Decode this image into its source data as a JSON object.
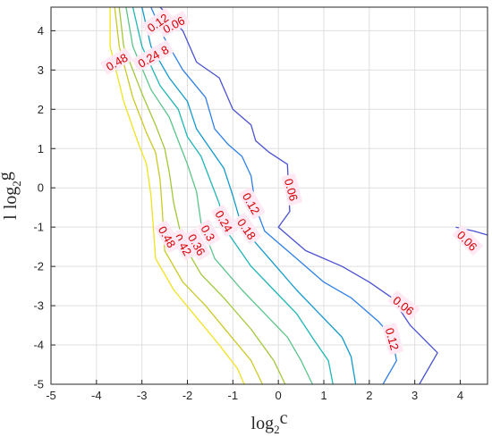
{
  "chart_data": {
    "type": "contour",
    "xlabel": {
      "base": "log",
      "sub": "2",
      "var": "c"
    },
    "ylabel": {
      "prefix": "l",
      "base": "log",
      "sub": "2",
      "var": "g"
    },
    "xlim": [
      -5,
      4.6
    ],
    "ylim": [
      -5,
      4.6
    ],
    "xticks": [
      -5,
      -4,
      -3,
      -2,
      -1,
      0,
      1,
      2,
      3,
      4
    ],
    "yticks": [
      -5,
      -4,
      -3,
      -2,
      -1,
      0,
      1,
      2,
      3,
      4
    ],
    "grid": true,
    "levels": [
      {
        "value": 0.06,
        "color": "#4b52d3",
        "paths": [
          [
            [
              -2.6,
              4.6
            ],
            [
              -2.1,
              4.0
            ],
            [
              -1.8,
              3.2
            ],
            [
              -1.3,
              2.8
            ],
            [
              -1.0,
              2.0
            ],
            [
              -0.6,
              1.6
            ],
            [
              -0.5,
              1.2
            ],
            [
              -0.2,
              0.9
            ],
            [
              0.2,
              0.6
            ],
            [
              0.25,
              -0.6
            ],
            [
              0.0,
              -1.0
            ],
            [
              0.6,
              -1.6
            ],
            [
              1.4,
              -2.0
            ],
            [
              2.0,
              -2.4
            ],
            [
              2.5,
              -2.8
            ],
            [
              2.9,
              -3.5
            ],
            [
              3.5,
              -4.2
            ],
            [
              3.1,
              -5.0
            ]
          ],
          [
            [
              3.9,
              -1.0
            ],
            [
              4.3,
              -1.1
            ],
            [
              4.6,
              -1.2
            ]
          ]
        ],
        "labels": [
          {
            "x": -2.3,
            "y": 4.15,
            "rot": -28
          },
          {
            "x": 0.28,
            "y": -0.05,
            "rot": 75
          },
          {
            "x": 2.75,
            "y": -3.0,
            "rot": 38
          },
          {
            "x": 4.15,
            "y": -1.35,
            "rot": 45
          }
        ]
      },
      {
        "value": 0.12,
        "color": "#2f80e8",
        "paths": [
          [
            [
              -2.8,
              4.6
            ],
            [
              -2.5,
              3.8
            ],
            [
              -2.1,
              3.0
            ],
            [
              -1.6,
              2.3
            ],
            [
              -1.4,
              1.5
            ],
            [
              -1.1,
              1.1
            ],
            [
              -0.8,
              0.8
            ],
            [
              -0.6,
              0.3
            ],
            [
              -0.5,
              -0.5
            ],
            [
              -0.3,
              -1.1
            ],
            [
              0.4,
              -1.8
            ],
            [
              1.0,
              -2.4
            ],
            [
              1.6,
              -2.8
            ],
            [
              2.2,
              -3.4
            ],
            [
              2.5,
              -3.8
            ],
            [
              2.6,
              -4.4
            ],
            [
              2.3,
              -5.0
            ]
          ]
        ],
        "labels": [
          {
            "x": -2.65,
            "y": 4.2,
            "rot": -35
          },
          {
            "x": -0.6,
            "y": -0.4,
            "rot": 60
          },
          {
            "x": 2.5,
            "y": -3.85,
            "rot": 75
          }
        ]
      },
      {
        "value": 0.18,
        "color": "#129acc",
        "paths": [
          [
            [
              -3.0,
              4.6
            ],
            [
              -2.8,
              3.6
            ],
            [
              -2.4,
              2.8
            ],
            [
              -2.0,
              2.2
            ],
            [
              -1.8,
              1.5
            ],
            [
              -1.5,
              1.0
            ],
            [
              -1.2,
              0.5
            ],
            [
              -1.0,
              -0.2
            ],
            [
              -0.8,
              -1.0
            ],
            [
              -0.2,
              -1.8
            ],
            [
              0.4,
              -2.6
            ],
            [
              0.9,
              -3.2
            ],
            [
              1.4,
              -3.8
            ],
            [
              1.6,
              -4.3
            ],
            [
              1.7,
              -5.0
            ]
          ]
        ],
        "labels": [
          {
            "x": -2.65,
            "y": 3.4,
            "rot": -30
          },
          {
            "x": -0.7,
            "y": -1.05,
            "rot": 55
          }
        ]
      },
      {
        "value": 0.24,
        "color": "#1eb6b6",
        "paths": [
          [
            [
              -3.2,
              4.6
            ],
            [
              -3.0,
              3.6
            ],
            [
              -2.6,
              2.6
            ],
            [
              -2.2,
              2.0
            ],
            [
              -2.0,
              1.3
            ],
            [
              -1.7,
              0.8
            ],
            [
              -1.5,
              0.2
            ],
            [
              -1.3,
              -0.4
            ],
            [
              -1.2,
              -1.0
            ],
            [
              -0.6,
              -2.0
            ],
            [
              -0.1,
              -2.6
            ],
            [
              0.4,
              -3.2
            ],
            [
              0.8,
              -3.9
            ],
            [
              1.1,
              -4.4
            ],
            [
              1.2,
              -5.0
            ]
          ]
        ],
        "labels": [
          {
            "x": -2.85,
            "y": 3.28,
            "rot": -30
          },
          {
            "x": -1.2,
            "y": -0.85,
            "rot": 60
          }
        ]
      },
      {
        "value": 0.3,
        "color": "#5bc589",
        "paths": [
          [
            [
              -3.35,
              4.6
            ],
            [
              -3.2,
              3.6
            ],
            [
              -2.8,
              2.5
            ],
            [
              -2.4,
              1.8
            ],
            [
              -2.2,
              1.2
            ],
            [
              -2.0,
              0.6
            ],
            [
              -1.8,
              -0.1
            ],
            [
              -1.7,
              -0.9
            ],
            [
              -1.4,
              -1.8
            ],
            [
              -0.8,
              -2.6
            ],
            [
              -0.3,
              -3.2
            ],
            [
              0.2,
              -3.8
            ],
            [
              0.5,
              -4.4
            ],
            [
              0.75,
              -5.0
            ]
          ]
        ],
        "labels": [
          {
            "x": -1.55,
            "y": -1.15,
            "rot": 60
          }
        ]
      },
      {
        "value": 0.36,
        "color": "#a2c838",
        "paths": [
          [
            [
              -3.5,
              4.6
            ],
            [
              -3.4,
              3.6
            ],
            [
              -3.0,
              2.4
            ],
            [
              -2.7,
              1.6
            ],
            [
              -2.5,
              1.0
            ],
            [
              -2.4,
              0.4
            ],
            [
              -2.3,
              -0.4
            ],
            [
              -2.1,
              -1.4
            ],
            [
              -1.7,
              -2.2
            ],
            [
              -1.2,
              -2.8
            ],
            [
              -0.6,
              -3.6
            ],
            [
              -0.1,
              -4.4
            ],
            [
              0.15,
              -5.0
            ]
          ]
        ],
        "labels": [
          {
            "x": -1.8,
            "y": -1.45,
            "rot": 60
          }
        ]
      },
      {
        "value": 0.42,
        "color": "#cbc925",
        "paths": [
          [
            [
              -3.6,
              4.6
            ],
            [
              -3.5,
              3.6
            ],
            [
              -3.2,
              2.3
            ],
            [
              -2.9,
              1.4
            ],
            [
              -2.7,
              0.9
            ],
            [
              -2.6,
              0.2
            ],
            [
              -2.55,
              -0.6
            ],
            [
              -2.5,
              -1.6
            ],
            [
              -2.1,
              -2.4
            ],
            [
              -1.6,
              -3.0
            ],
            [
              -1.1,
              -3.7
            ],
            [
              -0.6,
              -4.4
            ],
            [
              -0.35,
              -5.0
            ]
          ]
        ],
        "labels": [
          {
            "x": -2.1,
            "y": -1.45,
            "rot": 60
          }
        ]
      },
      {
        "value": 0.48,
        "color": "#f0e31e",
        "paths": [
          [
            [
              -3.7,
              4.6
            ],
            [
              -3.7,
              3.6
            ],
            [
              -3.4,
              2.2
            ],
            [
              -3.1,
              1.2
            ],
            [
              -2.9,
              0.6
            ],
            [
              -2.8,
              -0.2
            ],
            [
              -2.75,
              -1.0
            ],
            [
              -2.7,
              -1.8
            ],
            [
              -2.3,
              -2.6
            ],
            [
              -1.8,
              -3.3
            ],
            [
              -1.3,
              -4.0
            ],
            [
              -0.9,
              -4.6
            ],
            [
              -0.75,
              -5.0
            ]
          ]
        ],
        "labels": [
          {
            "x": -3.55,
            "y": 3.2,
            "rot": -30
          },
          {
            "x": -2.45,
            "y": -1.25,
            "rot": 60
          }
        ]
      }
    ]
  }
}
